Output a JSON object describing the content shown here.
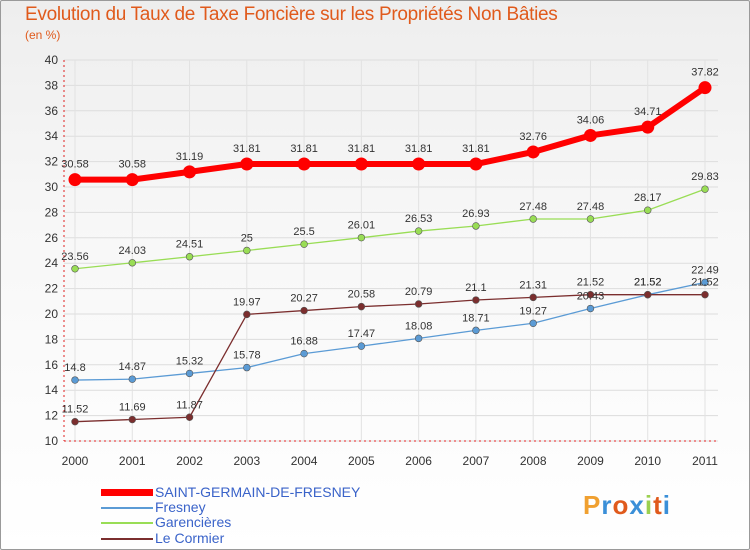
{
  "header": {
    "title": "Evolution du Taux de Taxe Foncière sur les Propriétés Non Bâties",
    "unit": "(en %)"
  },
  "chart_data": {
    "type": "line",
    "title": "Evolution du Taux de Taxe Foncière sur les Propriétés Non Bâties",
    "ylabel": "(en %)",
    "xlabel": "",
    "ylim": [
      10,
      40
    ],
    "yticks": [
      "10",
      "12",
      "14",
      "16",
      "18",
      "20",
      "22",
      "24",
      "26",
      "28",
      "30",
      "32",
      "34",
      "36",
      "38",
      "40"
    ],
    "categories": [
      "2000",
      "2001",
      "2002",
      "2003",
      "2004",
      "2005",
      "2006",
      "2007",
      "2008",
      "2009",
      "2010",
      "2011"
    ],
    "series": [
      {
        "name": "SAINT-GERMAIN-DE-FRESNEY",
        "color": "#ff0000",
        "values": [
          30.58,
          30.58,
          31.19,
          31.81,
          31.81,
          31.81,
          31.81,
          31.81,
          32.76,
          34.06,
          34.71,
          37.82
        ],
        "labels": [
          "30.58",
          "30.58",
          "31.19",
          "31.81",
          "31.81",
          "31.81",
          "31.81",
          "31.81",
          "32.76",
          "34.06",
          "34.71",
          "37.82"
        ]
      },
      {
        "name": "Fresney",
        "color": "#5b9bd5",
        "values": [
          14.8,
          14.87,
          15.32,
          15.78,
          16.88,
          17.47,
          18.08,
          18.71,
          19.27,
          20.43,
          21.52,
          22.49
        ],
        "labels": [
          "14.8",
          "14.87",
          "15.32",
          "15.78",
          "16.88",
          "17.47",
          "18.08",
          "18.71",
          "19.27",
          "20.43",
          "21.52",
          "22.49"
        ]
      },
      {
        "name": "Garencières",
        "color": "#99dd55",
        "values": [
          23.56,
          24.03,
          24.51,
          25,
          25.5,
          26.01,
          26.53,
          26.93,
          27.48,
          27.48,
          28.17,
          29.83
        ],
        "labels": [
          "23.56",
          "24.03",
          "24.51",
          "25",
          "25.5",
          "26.01",
          "26.53",
          "26.93",
          "27.48",
          "27.48",
          "28.17",
          "29.83"
        ]
      },
      {
        "name": "Le Cormier",
        "color": "#7b2e2e",
        "values": [
          11.52,
          11.69,
          11.87,
          19.97,
          20.27,
          20.58,
          20.79,
          21.1,
          21.31,
          21.52,
          21.52,
          21.52
        ],
        "labels": [
          "11.52",
          "11.69",
          "11.87",
          "19.97",
          "20.27",
          "20.58",
          "20.79",
          "21.1",
          "21.31",
          "21.52",
          "21.52",
          "21.52"
        ]
      }
    ],
    "legend_position": "bottom-left"
  },
  "logo": {
    "letters": [
      "P",
      "r",
      "o",
      "x",
      "i",
      "t",
      "i"
    ],
    "colors": [
      "#f0a030",
      "#3a8fd8",
      "#e05a1c",
      "#3a8fd8",
      "#9bd050",
      "#e05a1c",
      "#3a8fd8"
    ]
  }
}
